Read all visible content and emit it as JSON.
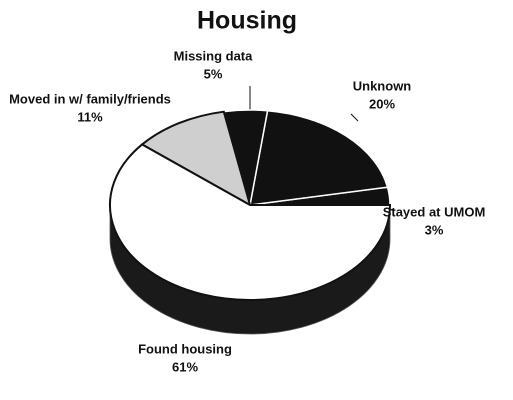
{
  "chart_data": {
    "type": "pie",
    "title": "Housing",
    "categories": [
      "Stayed at UMOM",
      "Unknown",
      "Missing data",
      "Moved in w/ family/friends",
      "Found housing"
    ],
    "values": [
      3,
      20,
      5,
      11,
      61
    ],
    "value_labels": [
      "3%",
      "20%",
      "5%",
      "11%",
      "61%"
    ],
    "colors": [
      "#111111",
      "#111111",
      "#111111",
      "#cfcfcf",
      "#ffffff"
    ]
  }
}
